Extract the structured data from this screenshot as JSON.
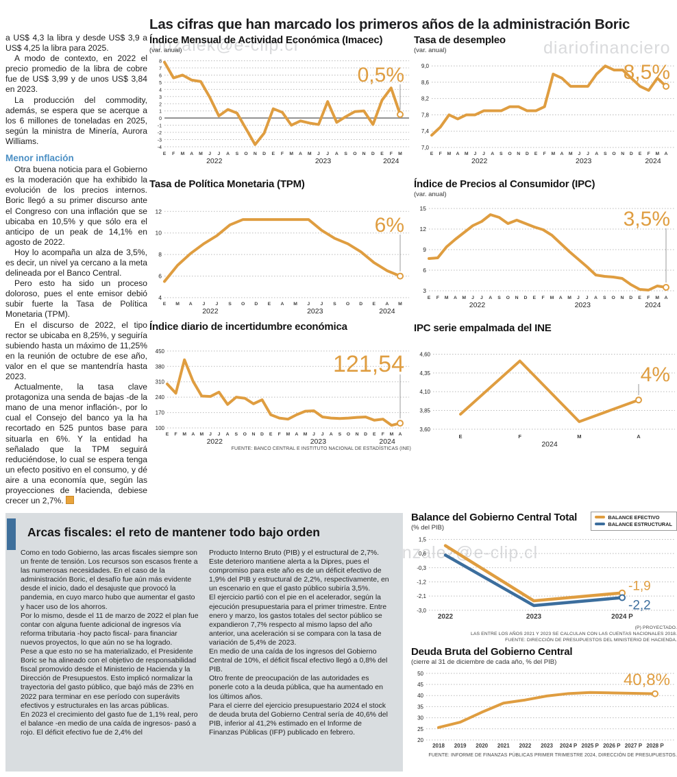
{
  "page": {
    "main_title": "Las cifras que han marcado los primeros años de la administración Boric",
    "watermarks": [
      "onzalek@e-clip.cl",
      "diariofinanciero",
      "diariofinanciero#lagonzalez@e-clip.cl"
    ]
  },
  "left_column": {
    "p": [
      "a US$ 4,3 la libra y desde US$ 3,9 a US$ 4,25 la libra para 2025.",
      "A modo de contexto, en 2022 el precio promedio de la libra de cobre fue de US$ 3,99 y de unos US$ 3,84 en 2023.",
      "La producción del commodity, además, se espera que se acerque a los 6 millones de toneladas en 2025, según la ministra de Minería, Aurora Williams."
    ],
    "heading": "Menor inflación",
    "p2": [
      "Otra buena noticia para el Gobierno es la moderación que ha exhibido la evolución de los precios internos. Boric llegó a su primer discurso ante el Congreso con una inflación que se ubicaba en 10,5% y que sólo era el anticipo de un peak de 14,1% en agosto de 2022.",
      "Hoy lo acompaña un alza de 3,5%, es decir, un nivel ya cercano a la meta delineada por el Banco Central.",
      "Pero esto ha sido un proceso doloroso, pues el ente emisor debió subir fuerte la Tasa de Política Monetaria (TPM).",
      "En el discurso de 2022, el tipo rector se ubicaba en 8,25%, y seguiría subiendo hasta un máximo de 11,25% en la reunión de octubre de ese año, valor en el que se mantendría hasta 2023.",
      "Actualmente, la tasa clave protagoniza una senda de bajas -de la mano de una menor inflación-, por lo cual el Consejo del banco ya la ha recortado en 525 puntos base para situarla en 6%. Y la entidad ha señalado que la TPM seguirá reduciéndose, lo cual se espera tenga un efecto positivo en el consumo, y dé aire a una economía que, según las proyecciones de Hacienda, debiese crecer un 2,7%."
    ]
  },
  "bottom": {
    "title": "Arcas fiscales: el reto de mantener todo bajo orden",
    "col1": [
      "Como en todo Gobierno, las arcas fiscales siempre son un frente de tensión. Los recursos son escasos frente a las numerosas necesidades. En el caso de la administración Boric, el desafío fue aún más evidente desde el inicio, dado el desajuste que provocó la pandemia, en cuyo marco hubo que aumentar el gasto y hacer uso de los ahorros.",
      "Por lo mismo, desde el 11 de marzo de 2022 el plan fue contar con alguna fuente adicional de ingresos vía reforma tributaria -hoy pacto fiscal- para financiar nuevos proyectos, lo que aún no se ha logrado.",
      "Pese a que esto no se ha materializado, el Presidente Boric se ha alineado con el objetivo de responsabilidad fiscal promovido desde el Ministerio de Hacienda y la Dirección de Presupuestos. Esto implicó normalizar la trayectoria del gasto público, que bajó más de 23% en 2022 para terminar en ese período con superávits efectivos y estructurales en las arcas públicas.",
      "En 2023 el crecimiento del gasto fue de 1,1% real, pero el balance -en medio de una caída de ingresos- pasó a rojo. El déficit efectivo fue de 2,4% del"
    ],
    "col2": [
      "Producto Interno Bruto (PIB) y el estructural de 2,7%. Este deterioro mantiene alerta a la Dipres, pues el compromiso para este año es de un déficit efectivo de 1,9% del PIB y estructural de 2,2%, respectivamente, en un escenario en que el gasto público subiría 3,5%.",
      "El ejercicio partió con el pie en el acelerador, según la ejecución presupuestaria para el primer trimestre. Entre enero y marzo, los gastos totales del sector público se expandieron 7,7% respecto al mismo lapso del año anterior, una aceleración si se compara con la tasa de variación de 5,4% de 2023.",
      "En medio de una caída de los ingresos del Gobierno Central de 10%, el déficit fiscal efectivo llegó a 0,8% del PIB.",
      "Otro frente de preocupación de las autoridades es ponerle coto a la deuda pública, que ha aumentado en los últimos años.",
      "Para el cierre del ejercicio presupuestario 2024 el stock de deuda bruta del Gobierno Central sería de 40,6% del PIB, inferior al 41,2% estimado en el Informe de Finanzas Públicas (IFP) publicado en febrero."
    ]
  },
  "chart_data": [
    {
      "id": "imacec",
      "type": "line",
      "title": "Índice Mensual de Actividad Económica (Imacec)",
      "subtitle": "(var. anual)",
      "headline": "0,5%",
      "color": "#DF9D40",
      "x_labels": [
        "E",
        "F",
        "M",
        "A",
        "M",
        "J",
        "J",
        "A",
        "S",
        "O",
        "N",
        "D",
        "E",
        "F",
        "M",
        "A",
        "M",
        "J",
        "J",
        "A",
        "S",
        "O",
        "N",
        "D",
        "E",
        "F",
        "M"
      ],
      "year_groups": [
        {
          "label": "2022",
          "from": 0,
          "to": 11
        },
        {
          "label": "2023",
          "from": 12,
          "to": 23
        },
        {
          "label": "2024",
          "from": 24,
          "to": 26
        }
      ],
      "values": [
        7.8,
        5.6,
        6.0,
        5.3,
        5.1,
        2.9,
        0.3,
        1.2,
        0.7,
        -1.5,
        -3.7,
        -2.1,
        1.3,
        0.8,
        -1.0,
        -0.4,
        -0.7,
        -0.9,
        2.3,
        -0.6,
        0.2,
        0.9,
        1.0,
        -0.9,
        2.5,
        4.2,
        0.5
      ],
      "ylim": [
        -4.1,
        8.15
      ],
      "yticks": {
        "values": [
          8,
          7,
          6,
          5,
          4,
          3,
          2,
          1,
          0,
          -1,
          -2,
          -3,
          -4
        ],
        "labels": [
          "8",
          "7",
          "6",
          "5",
          "4",
          "3",
          "2",
          "1",
          "0",
          "-1",
          "-2",
          "-3",
          "-4"
        ]
      },
      "zero_line": true
    },
    {
      "id": "desempleo",
      "type": "line",
      "title": "Tasa de desempleo",
      "subtitle": "(var. anual)",
      "headline": "8,5%",
      "color": "#DF9D40",
      "x_labels": [
        "E",
        "F",
        "M",
        "A",
        "M",
        "J",
        "J",
        "A",
        "S",
        "O",
        "N",
        "D",
        "E",
        "F",
        "M",
        "A",
        "M",
        "J",
        "J",
        "A",
        "S",
        "O",
        "N",
        "D",
        "E",
        "F",
        "M",
        "A"
      ],
      "year_groups": [
        {
          "label": "2022",
          "from": 0,
          "to": 11
        },
        {
          "label": "2023",
          "from": 12,
          "to": 23
        },
        {
          "label": "2024",
          "from": 24,
          "to": 27
        }
      ],
      "values": [
        7.3,
        7.5,
        7.8,
        7.7,
        7.8,
        7.8,
        7.9,
        7.9,
        7.9,
        8.0,
        8.0,
        7.9,
        7.9,
        8.0,
        8.8,
        8.7,
        8.5,
        8.5,
        8.5,
        8.8,
        9.0,
        8.9,
        8.9,
        8.7,
        8.5,
        8.4,
        8.7,
        8.5
      ],
      "ylim": [
        7.0,
        9.12
      ],
      "yticks": {
        "values": [
          9.0,
          8.6,
          8.2,
          7.8,
          7.4,
          7.0
        ],
        "labels": [
          "9,0",
          "8,6",
          "8,2",
          "7,8",
          "7,4",
          "7,0"
        ]
      }
    },
    {
      "id": "tpm",
      "type": "line",
      "title": "Tasa de Política Monetaria (TPM)",
      "headline": "6%",
      "color": "#DF9D40",
      "x_labels": [
        "E",
        "M",
        "A",
        "J",
        "J",
        "S",
        "O",
        "D",
        "E",
        "A",
        "M",
        "J",
        "J",
        "S",
        "O",
        "D",
        "E",
        "A",
        "M"
      ],
      "year_groups": [
        {
          "label": "2022",
          "from": 0,
          "to": 7
        },
        {
          "label": "2023",
          "from": 8,
          "to": 15
        },
        {
          "label": "2024",
          "from": 16,
          "to": 18
        }
      ],
      "values": [
        5.5,
        7.0,
        8.1,
        9.0,
        9.75,
        10.75,
        11.25,
        11.25,
        11.25,
        11.25,
        11.25,
        11.25,
        10.25,
        9.5,
        9.0,
        8.25,
        7.25,
        6.5,
        6.0
      ],
      "ylim": [
        4,
        12.4
      ],
      "yticks": {
        "values": [
          12,
          10,
          8,
          6,
          4
        ],
        "labels": [
          "12",
          "10",
          "8",
          "6",
          "4"
        ]
      }
    },
    {
      "id": "ipc",
      "type": "line",
      "title": "Índice de Precios al Consumidor (IPC)",
      "subtitle": "(var. anual)",
      "headline": "3,5%",
      "color": "#DF9D40",
      "x_labels": [
        "E",
        "F",
        "M",
        "A",
        "M",
        "J",
        "J",
        "A",
        "S",
        "O",
        "N",
        "D",
        "E",
        "F",
        "M",
        "A",
        "M",
        "J",
        "J",
        "A",
        "S",
        "O",
        "N",
        "D",
        "E",
        "F",
        "M",
        "A"
      ],
      "year_groups": [
        {
          "label": "2022",
          "from": 0,
          "to": 11
        },
        {
          "label": "2023",
          "from": 12,
          "to": 23
        },
        {
          "label": "2024",
          "from": 24,
          "to": 27
        }
      ],
      "values": [
        7.7,
        7.8,
        9.4,
        10.5,
        11.5,
        12.5,
        13.1,
        14.1,
        13.7,
        12.8,
        13.3,
        12.8,
        12.3,
        11.9,
        11.1,
        9.9,
        8.7,
        7.6,
        6.5,
        5.3,
        5.1,
        5.0,
        4.8,
        3.9,
        3.2,
        3.1,
        3.7,
        3.5
      ],
      "ylim": [
        2.9,
        15.5
      ],
      "yticks": {
        "values": [
          15,
          12,
          9,
          6,
          3
        ],
        "labels": [
          "15",
          "12",
          "9",
          "6",
          "3"
        ]
      }
    },
    {
      "id": "incertidumbre",
      "type": "line",
      "title": "Índice diario de incertidumbre económica",
      "headline": "121,54",
      "color": "#DF9D40",
      "x_labels": [
        "E",
        "F",
        "M",
        "A",
        "M",
        "J",
        "J",
        "A",
        "S",
        "O",
        "N",
        "D",
        "E",
        "F",
        "M",
        "A",
        "M",
        "J",
        "J",
        "A",
        "S",
        "O",
        "N",
        "D",
        "E",
        "F",
        "M",
        "A"
      ],
      "year_groups": [
        {
          "label": "2022",
          "from": 0,
          "to": 11
        },
        {
          "label": "2023",
          "from": 12,
          "to": 23
        },
        {
          "label": "2024",
          "from": 24,
          "to": 27
        }
      ],
      "values": [
        300,
        258,
        410,
        312,
        245,
        243,
        263,
        207,
        240,
        235,
        210,
        228,
        160,
        145,
        140,
        160,
        176,
        178,
        150,
        145,
        143,
        145,
        148,
        150,
        135,
        140,
        112,
        121.54
      ],
      "ylim": [
        100,
        462
      ],
      "yticks": {
        "values": [
          450,
          380,
          310,
          240,
          170,
          100
        ],
        "labels": [
          "450",
          "380",
          "310",
          "240",
          "170",
          "100"
        ]
      },
      "source": "FUENTE: BANCO CENTRAL E INSTITUTO NACIONAL DE ESTADÍSTICAS (INE)"
    },
    {
      "id": "ipc-empalmada",
      "type": "line",
      "title": "IPC serie empalmada del INE",
      "headline": "4%",
      "color": "#DF9D40",
      "x_labels": [
        "E",
        "F",
        "M",
        "A"
      ],
      "year_groups": [
        {
          "label": "2024",
          "from": 0,
          "to": 3
        }
      ],
      "values": [
        3.8,
        4.51,
        3.7,
        3.99
      ],
      "ylim": [
        3.58,
        4.66
      ],
      "yticks": {
        "values": [
          4.6,
          4.35,
          4.1,
          3.85,
          3.6
        ],
        "labels": [
          "4,60",
          "4,35",
          "4,10",
          "3,85",
          "3,60"
        ]
      }
    },
    {
      "id": "balance",
      "type": "line",
      "title": "Balance del Gobierno Central Total",
      "subtitle": "(% del PIB)",
      "x_labels": [
        "2022",
        "2023",
        "2024 P"
      ],
      "ylim": [
        -3.05,
        1.65
      ],
      "yticks": {
        "values": [
          1.5,
          0.6,
          -0.3,
          -1.2,
          -2.1,
          -3.0
        ],
        "labels": [
          "1,5",
          "0,6",
          "-0,3",
          "-1,2",
          "-2,1",
          "-3,0"
        ]
      },
      "series": [
        {
          "name": "BALANCE EFECTIVO",
          "color": "#DF9D40",
          "values": [
            1.1,
            -2.4,
            -1.9
          ],
          "end_label": "-1,9"
        },
        {
          "name": "BALANCE ESTRUCTURAL",
          "color": "#3C6E9D",
          "values": [
            0.5,
            -2.7,
            -2.2
          ],
          "end_label": "-2,2"
        }
      ],
      "footnotes": [
        "(P) PROYECTADO.",
        "LAS ENTRE LOS AÑOS 2021 Y 2023 SE CALCULAN CON LAS CUENTAS NACIONALES 2018.",
        "FUENTE: DIRECCIÓN DE PRESUPUESTOS DEL MINISTERIO DE HACIENDA."
      ]
    },
    {
      "id": "deuda",
      "type": "line",
      "title": "Deuda Bruta del Gobierno Central",
      "subtitle": "(cierre al 31 de diciembre de cada año, % del PIB)",
      "headline": "40,8%",
      "color": "#DF9D40",
      "x_labels": [
        "2018",
        "2019",
        "2020",
        "2021",
        "2022",
        "2023",
        "2024 P",
        "2025 P",
        "2026 P",
        "2027 P",
        "2028 P"
      ],
      "values": [
        25.6,
        28.0,
        32.5,
        36.6,
        38.0,
        39.8,
        40.9,
        41.4,
        41.2,
        41.0,
        40.8
      ],
      "ylim": [
        20,
        51.5
      ],
      "yticks": {
        "values": [
          50,
          45,
          40,
          35,
          30,
          25,
          20
        ],
        "labels": [
          "50",
          "45",
          "40",
          "35",
          "30",
          "25",
          "20"
        ]
      },
      "source": "FUENTE: INFORME DE FINANZAS PÚBLICAS PRIMER TRIMESTRE 2024, DIRECCIÓN DE PRESUPUESTOS."
    }
  ]
}
